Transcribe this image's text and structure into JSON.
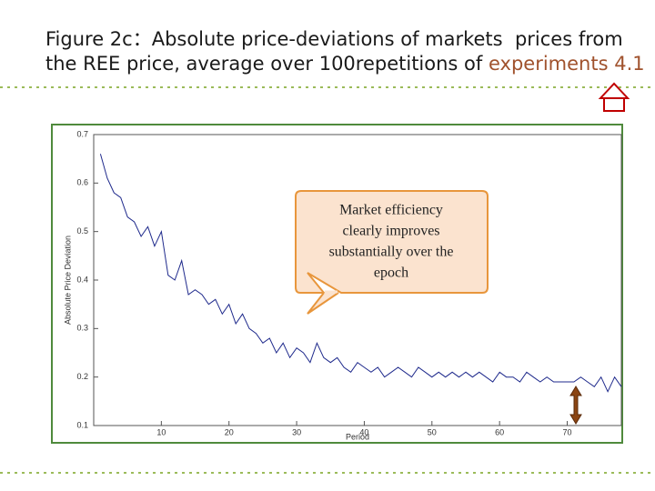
{
  "chart_data": {
    "type": "line",
    "title": [
      "Figure 2c：Absolute price-deviations of markets  prices from",
      "the REE price, average over 100repetitions of "
    ],
    "title_highlight": "experiments 4.1",
    "x_label": "Period",
    "y_label": "Absolute Price Deviation",
    "annotation": [
      "Market efficiency",
      "clearly improves",
      "substantially over the",
      "epoch"
    ],
    "x": [
      1,
      2,
      3,
      4,
      5,
      6,
      7,
      8,
      9,
      10,
      11,
      12,
      13,
      14,
      15,
      16,
      17,
      18,
      19,
      20,
      21,
      22,
      23,
      24,
      25,
      26,
      27,
      28,
      29,
      30,
      31,
      32,
      33,
      34,
      35,
      36,
      37,
      38,
      39,
      40,
      41,
      42,
      43,
      44,
      45,
      46,
      47,
      48,
      49,
      50,
      51,
      52,
      53,
      54,
      55,
      56,
      57,
      58,
      59,
      60,
      61,
      62,
      63,
      64,
      65,
      66,
      67,
      68,
      69,
      70,
      71,
      72,
      73,
      74,
      75,
      76,
      77,
      78
    ],
    "values": [
      0.66,
      0.61,
      0.58,
      0.57,
      0.53,
      0.52,
      0.49,
      0.51,
      0.47,
      0.5,
      0.41,
      0.4,
      0.44,
      0.37,
      0.38,
      0.37,
      0.35,
      0.36,
      0.33,
      0.35,
      0.31,
      0.33,
      0.3,
      0.29,
      0.27,
      0.28,
      0.25,
      0.27,
      0.24,
      0.26,
      0.25,
      0.23,
      0.27,
      0.24,
      0.23,
      0.24,
      0.22,
      0.21,
      0.23,
      0.22,
      0.21,
      0.22,
      0.2,
      0.21,
      0.22,
      0.21,
      0.2,
      0.22,
      0.21,
      0.2,
      0.21,
      0.2,
      0.21,
      0.2,
      0.21,
      0.2,
      0.21,
      0.2,
      0.19,
      0.21,
      0.2,
      0.2,
      0.19,
      0.21,
      0.2,
      0.19,
      0.2,
      0.19,
      0.19,
      0.19,
      0.19,
      0.2,
      0.19,
      0.18,
      0.2,
      0.17,
      0.2,
      0.18
    ],
    "color": "#1f2a8c",
    "xlim": [
      0,
      78
    ],
    "xticks": [
      10,
      20,
      30,
      40,
      50,
      60,
      70
    ],
    "ylim": [
      0.1,
      0.7
    ],
    "yticks": [
      0.1,
      0.2,
      0.3,
      0.4,
      0.5,
      0.6,
      0.7
    ]
  }
}
